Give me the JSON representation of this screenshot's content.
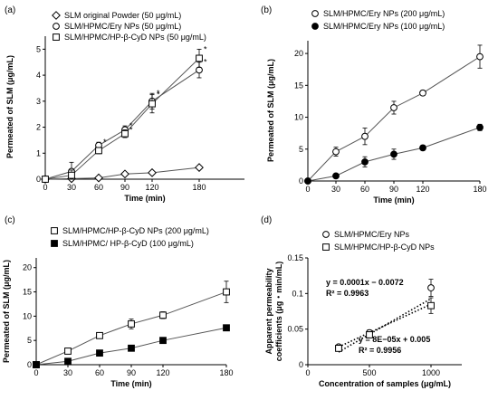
{
  "chart_data": [
    {
      "panel_label": "(a)",
      "type": "line",
      "xlabel": "Time (min)",
      "ylabel": "Permeated of SLM (μg/mL)",
      "xlim": [
        0,
        180
      ],
      "ylim": [
        0,
        5.5
      ],
      "x_ticks": [
        0,
        30,
        60,
        90,
        120,
        180
      ],
      "y_ticks": [
        0,
        1,
        2,
        3,
        4,
        5
      ],
      "legend_position": "top-left",
      "series": [
        {
          "name": "SLM original Powder (50 μg/mL)",
          "marker": "diamond-open",
          "x": [
            0,
            30,
            60,
            90,
            120,
            180
          ],
          "y": [
            0,
            0.02,
            0.05,
            0.2,
            0.25,
            0.45
          ],
          "err": [
            0,
            0.02,
            0.03,
            0.04,
            0.05,
            0.05
          ],
          "sig": [
            "",
            "",
            "",
            "",
            "",
            ""
          ]
        },
        {
          "name": "SLM/HPMC/Ery NPs (50 μg/mL)",
          "marker": "circle-open",
          "x": [
            0,
            30,
            60,
            90,
            120,
            180
          ],
          "y": [
            0,
            0.3,
            1.3,
            1.9,
            3.0,
            4.2
          ],
          "err": [
            0,
            0.35,
            0.12,
            0.15,
            0.3,
            0.3
          ],
          "sig": [
            "",
            "",
            "*",
            "*",
            "*",
            "*"
          ]
        },
        {
          "name": "SLM/HPMC/HP-β-CyD NPs (50 μg/mL)",
          "marker": "square-open",
          "x": [
            0,
            30,
            60,
            90,
            120,
            180
          ],
          "y": [
            0,
            0.15,
            1.1,
            1.75,
            2.9,
            4.65
          ],
          "err": [
            0,
            0.2,
            0.12,
            0.15,
            0.35,
            0.35
          ],
          "sig": [
            "",
            "",
            "",
            "*",
            "*",
            "*"
          ]
        }
      ]
    },
    {
      "panel_label": "(b)",
      "type": "line",
      "xlabel": "Time (min)",
      "ylabel": "Permeated of SLM (μg/mL)",
      "xlim": [
        0,
        180
      ],
      "ylim": [
        0,
        22
      ],
      "x_ticks": [
        0,
        30,
        60,
        90,
        120,
        180
      ],
      "y_ticks": [
        0,
        5,
        10,
        15,
        20
      ],
      "legend_position": "top",
      "series": [
        {
          "name": "SLM/HPMC/Ery NPs (200 μg/mL)",
          "marker": "circle-open",
          "x": [
            0,
            30,
            60,
            90,
            120,
            180
          ],
          "y": [
            0,
            4.6,
            7.0,
            11.5,
            13.8,
            19.5
          ],
          "err": [
            0,
            0.7,
            1.3,
            1.0,
            0.4,
            1.8
          ],
          "sig": []
        },
        {
          "name": "SLM/HPMC/Ery NPs (100 μg/mL)",
          "marker": "circle-filled",
          "x": [
            0,
            30,
            60,
            90,
            120,
            180
          ],
          "y": [
            0,
            0.8,
            3.0,
            4.2,
            5.2,
            8.4
          ],
          "err": [
            0,
            0.2,
            0.8,
            0.8,
            0.4,
            0.5
          ],
          "sig": []
        }
      ]
    },
    {
      "panel_label": "(c)",
      "type": "line",
      "xlabel": "Time (min)",
      "ylabel": "Permeated of SLM (μg/mL)",
      "xlim": [
        0,
        180
      ],
      "ylim": [
        0,
        22
      ],
      "x_ticks": [
        0,
        30,
        60,
        90,
        120,
        180
      ],
      "y_ticks": [
        0,
        5,
        10,
        15,
        20
      ],
      "legend_position": "top",
      "series": [
        {
          "name": "SLM/HPMC/HP-β-CyD NPs (200 μg/mL)",
          "marker": "square-open",
          "x": [
            0,
            30,
            60,
            90,
            120,
            180
          ],
          "y": [
            0,
            2.8,
            6.0,
            8.4,
            10.2,
            15.0
          ],
          "err": [
            0,
            0.3,
            0.5,
            1.0,
            0.7,
            2.2
          ],
          "sig": []
        },
        {
          "name": "SLM/HPMC/ HP-β-CyD (100 μg/mL)",
          "marker": "square-filled",
          "x": [
            0,
            30,
            60,
            90,
            120,
            180
          ],
          "y": [
            0,
            0.7,
            2.4,
            3.4,
            5.0,
            7.6
          ],
          "err": [
            0,
            0.1,
            0.3,
            0.4,
            0.3,
            0.3
          ],
          "sig": []
        }
      ]
    },
    {
      "panel_label": "(d)",
      "type": "scatter",
      "xlabel": "Concentration of samples (μg/mL)",
      "ylabel": "Apparent permeability coefficients (μg・min/mL)",
      "xlim": [
        0,
        1250
      ],
      "ylim": [
        0,
        0.15
      ],
      "x_ticks": [
        0,
        500,
        1000
      ],
      "y_ticks": [
        0,
        0.05,
        0.1,
        0.15
      ],
      "legend_position": "top",
      "series": [
        {
          "name": "SLM/HPMC/Ery NPs",
          "marker": "circle-open",
          "x": [
            250,
            500,
            1000
          ],
          "y": [
            0.025,
            0.045,
            0.108
          ],
          "err": [
            0.003,
            0.004,
            0.012
          ],
          "trendline": {
            "slope": 0.0001,
            "intercept": -0.0072,
            "x_range": [
              250,
              1000
            ]
          },
          "equation": "y = 0.0001x − 0.0072",
          "r2": "R² = 0.9963"
        },
        {
          "name": "SLM/HPMC/HP-β-CyD NPs",
          "marker": "square-open",
          "x": [
            250,
            500,
            1000
          ],
          "y": [
            0.023,
            0.042,
            0.083
          ],
          "err": [
            0.003,
            0.004,
            0.011
          ],
          "trendline": {
            "slope": 8e-05,
            "intercept": 0.005,
            "x_range": [
              250,
              1000
            ]
          },
          "equation": "y = 8E−05x + 0.005",
          "r2": "R² = 0.9956"
        }
      ]
    }
  ]
}
